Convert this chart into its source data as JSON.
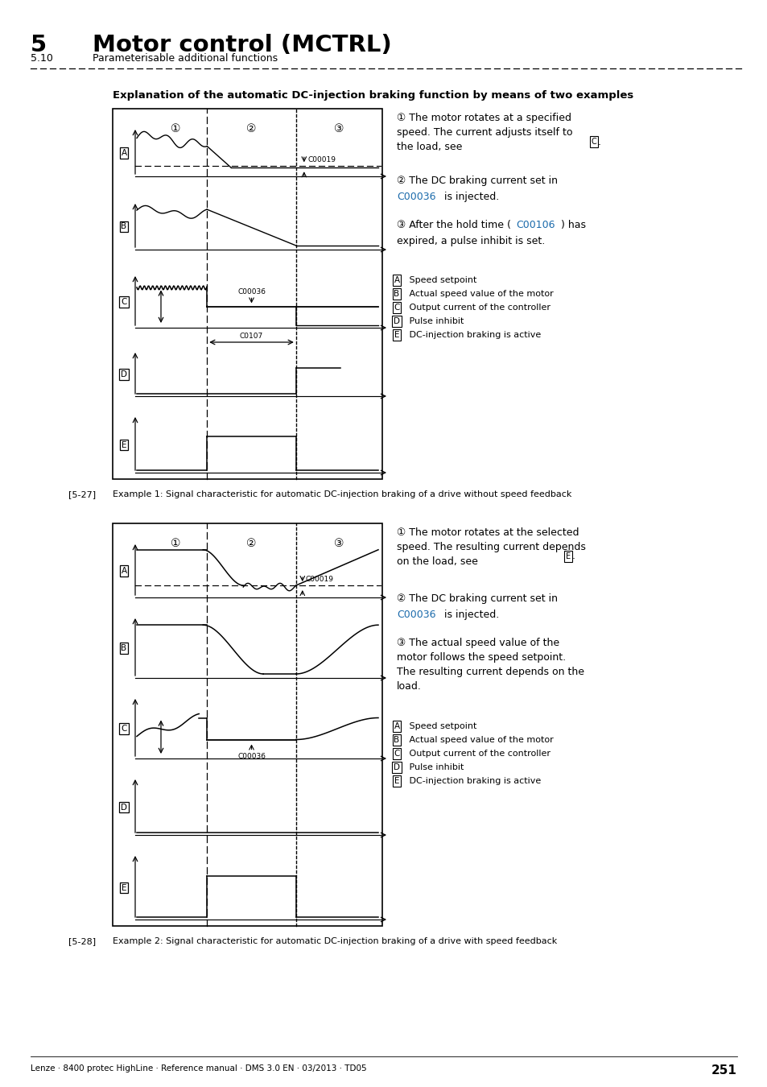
{
  "title_number": "5",
  "title_text": "Motor control (MCTRL)",
  "subtitle_number": "5.10",
  "subtitle_text": "Parameterisable additional functions",
  "section_title": "Explanation of the automatic DC-injection braking function by means of two examples",
  "fig1_label": "[5-27]",
  "fig1_caption": "Example 1: Signal characteristic for automatic DC-injection braking of a drive without speed feedback",
  "fig2_label": "[5-28]",
  "fig2_caption": "Example 2: Signal characteristic for automatic DC-injection braking of a drive with speed feedback",
  "footer": "Lenze · 8400 protec HighLine · Reference manual · DMS 3.0 EN · 03/2013 · TD05",
  "page_number": "251",
  "bg_color": "#ffffff",
  "text_color": "#000000",
  "link_color": "#1a6aab"
}
